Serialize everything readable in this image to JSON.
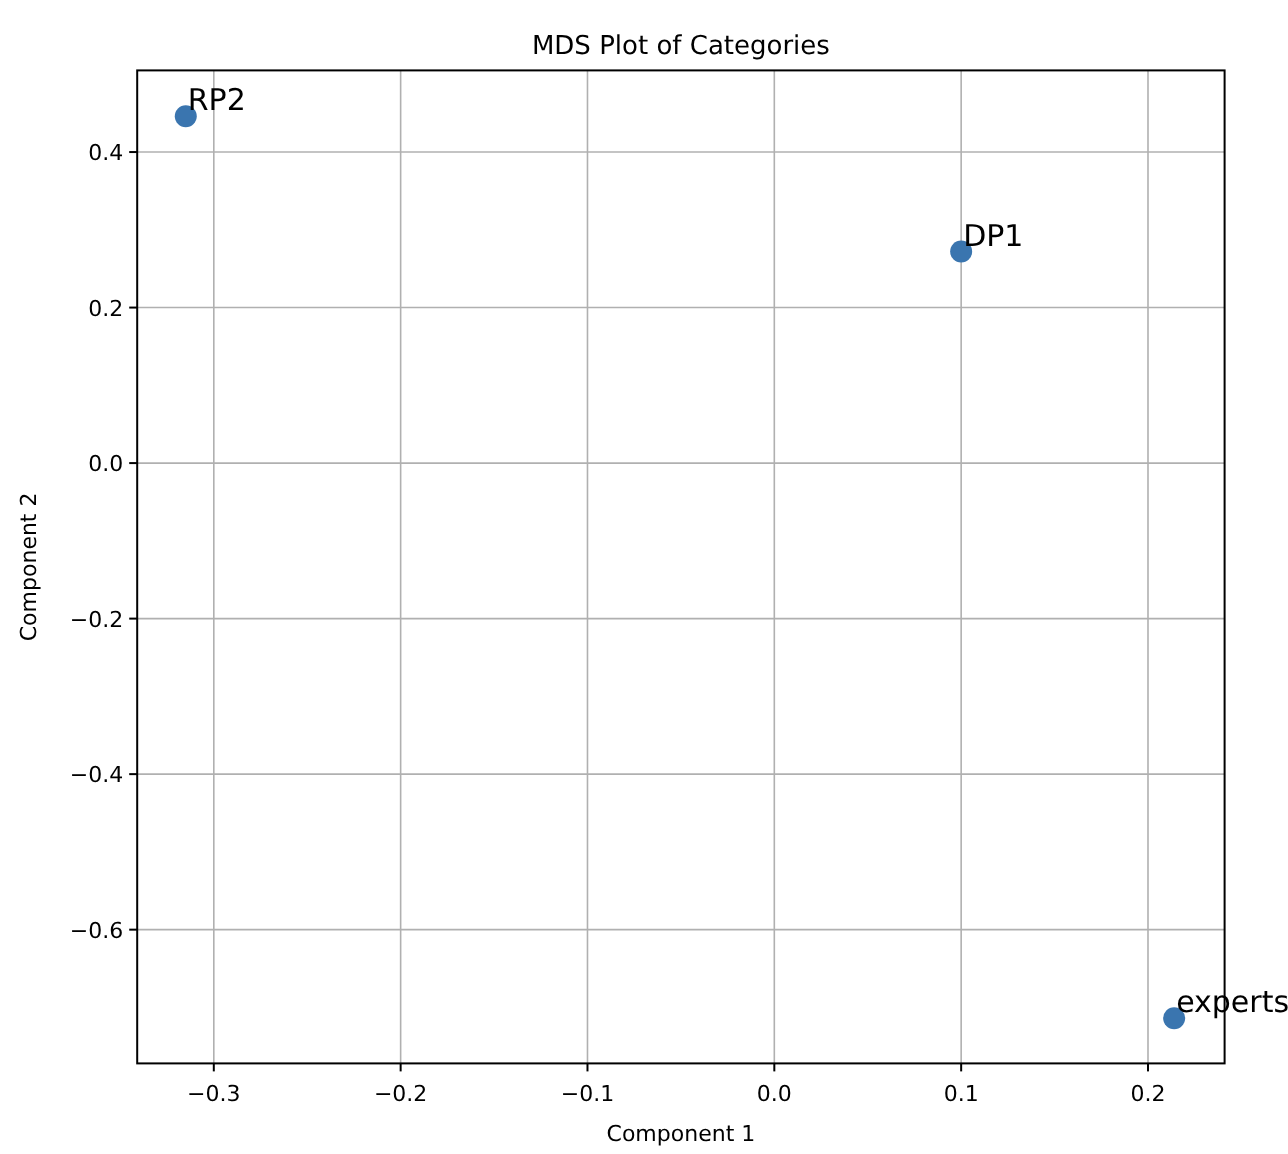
{
  "chart_data": {
    "type": "scatter",
    "title": "MDS Plot of Categories",
    "xlabel": "Component 1",
    "ylabel": "Component 2",
    "x": [
      -0.315,
      0.1,
      0.214
    ],
    "values": [
      0.446,
      0.272,
      -0.714
    ],
    "color": "#3a75af",
    "marker": "circle",
    "annotations": [
      {
        "text": "RP2",
        "x": -0.315,
        "y": 0.446
      },
      {
        "text": "DP1",
        "x": 0.1,
        "y": 0.272
      },
      {
        "text": "experts",
        "x": 0.214,
        "y": -0.714
      }
    ],
    "xlim": [
      -0.341,
      0.241
    ],
    "ylim": [
      -0.772,
      0.505
    ],
    "xticks": [
      {
        "value": -0.3,
        "label": "−0.3"
      },
      {
        "value": -0.2,
        "label": "−0.2"
      },
      {
        "value": -0.1,
        "label": "−0.1"
      },
      {
        "value": 0,
        "label": "0.0"
      },
      {
        "value": 0.1,
        "label": "0.1"
      },
      {
        "value": 0.2,
        "label": "0.2"
      }
    ],
    "yticks": [
      {
        "value": -0.6,
        "label": "−0.6"
      },
      {
        "value": -0.4,
        "label": "−0.4"
      },
      {
        "value": -0.2,
        "label": "−0.2"
      },
      {
        "value": 0,
        "label": "0.0"
      },
      {
        "value": 0.2,
        "label": "0.2"
      },
      {
        "value": 0.4,
        "label": "0.4"
      }
    ],
    "grid": true
  }
}
